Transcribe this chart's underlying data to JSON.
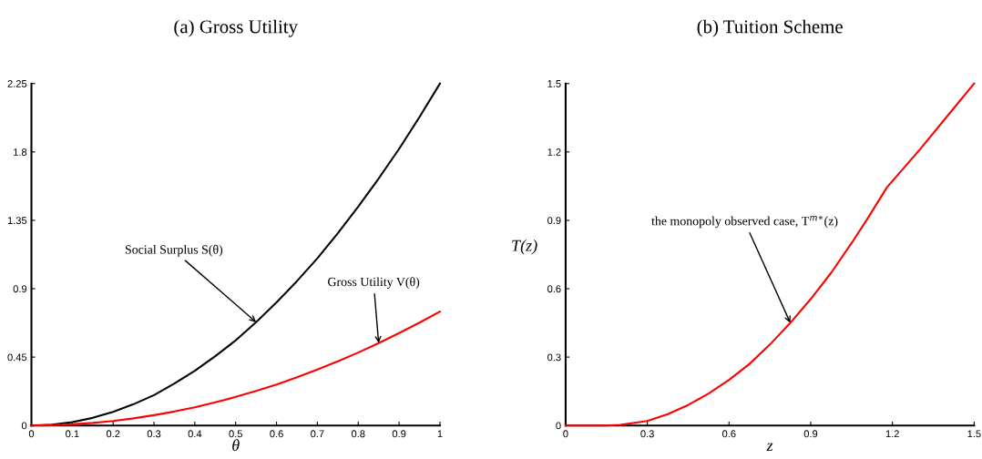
{
  "chart_data": [
    {
      "type": "line",
      "title": "(a) Gross Utility",
      "xlabel": "θ",
      "xlim": [
        0,
        1
      ],
      "ylim": [
        0,
        2.25
      ],
      "xticks": [
        0,
        0.1,
        0.2,
        0.3,
        0.4,
        0.5,
        0.6,
        0.7,
        0.8,
        0.9,
        1
      ],
      "yticks": [
        0,
        0.45,
        0.9,
        1.35,
        1.8,
        2.25
      ],
      "x": [
        0,
        0.05,
        0.1,
        0.15,
        0.2,
        0.25,
        0.3,
        0.35,
        0.4,
        0.45,
        0.5,
        0.55,
        0.6,
        0.65,
        0.7,
        0.75,
        0.8,
        0.85,
        0.9,
        0.95,
        1
      ],
      "series": [
        {
          "color": "#000000",
          "values": [
            0,
            0.006,
            0.022,
            0.05,
            0.09,
            0.14,
            0.2,
            0.276,
            0.36,
            0.456,
            0.56,
            0.68,
            0.81,
            0.95,
            1.1,
            1.265,
            1.44,
            1.625,
            1.82,
            2.03,
            2.25
          ]
        },
        {
          "color": "#ff0000",
          "values": [
            0,
            0.002,
            0.008,
            0.017,
            0.03,
            0.047,
            0.068,
            0.092,
            0.12,
            0.152,
            0.188,
            0.227,
            0.27,
            0.317,
            0.368,
            0.422,
            0.48,
            0.542,
            0.608,
            0.677,
            0.75
          ]
        }
      ],
      "annotations": [
        {
          "text": "Social Surplus S(θ)",
          "x": 0.55,
          "y": 0.68
        },
        {
          "text": "Gross Utility V(θ)",
          "x": 0.85,
          "y": 0.542
        }
      ],
      "grid": false,
      "legend": false
    },
    {
      "type": "line",
      "title": "(b) Tuition Scheme",
      "xlabel": "z",
      "ylabel": "T(z)",
      "xlim": [
        0,
        1.5
      ],
      "ylim": [
        0,
        1.5
      ],
      "xticks": [
        0,
        0.3,
        0.6,
        0.9,
        1.2,
        1.5
      ],
      "yticks": [
        0,
        0.3,
        0.6,
        0.9,
        1.2,
        1.5
      ],
      "x": [
        0,
        0.15,
        0.2,
        0.3,
        0.375,
        0.45,
        0.525,
        0.6,
        0.675,
        0.75,
        0.825,
        0.9,
        0.975,
        1.05,
        1.11,
        1.18,
        1.3,
        1.4,
        1.5
      ],
      "series": [
        {
          "color": "#ff0000",
          "values": [
            0,
            0,
            0.003,
            0.02,
            0.05,
            0.09,
            0.14,
            0.2,
            0.27,
            0.355,
            0.45,
            0.555,
            0.67,
            0.8,
            0.91,
            1.045,
            1.21,
            1.355,
            1.5
          ]
        }
      ],
      "annotations": [
        {
          "text": "the monopoly observed case, T$^{m∗}$(z)",
          "x": 0.825,
          "y": 0.45
        }
      ],
      "grid": false,
      "legend": false
    }
  ]
}
